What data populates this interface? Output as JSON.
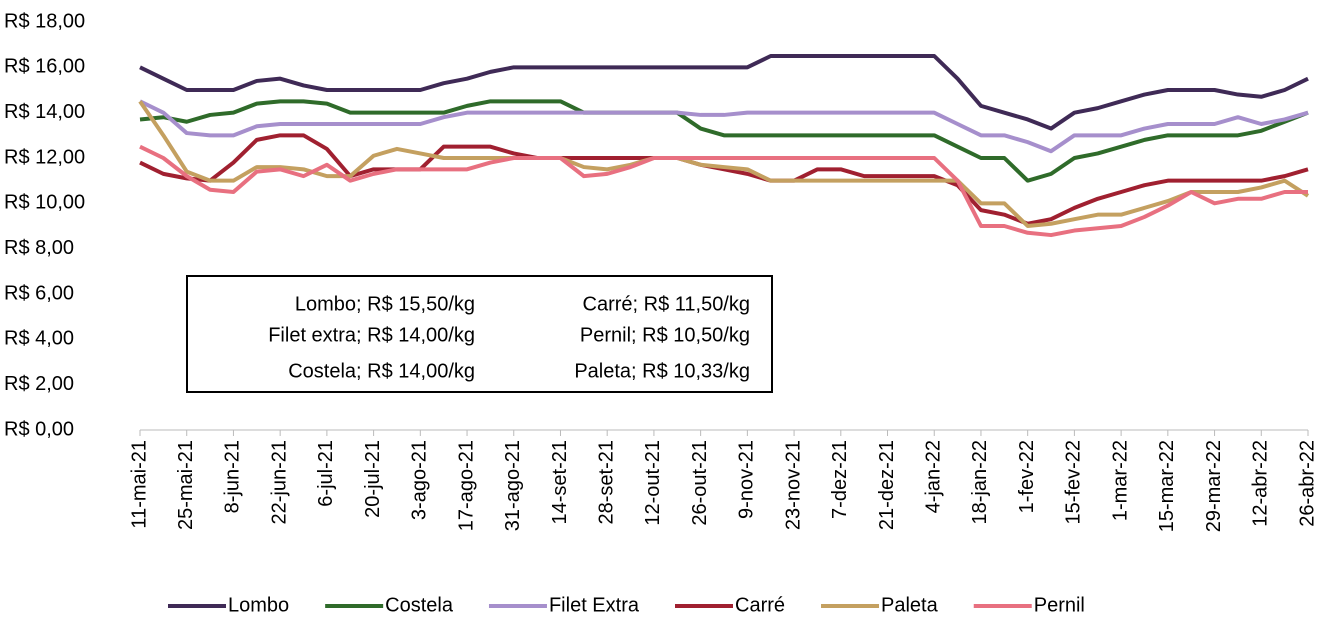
{
  "chart_data": {
    "type": "line",
    "categories": [
      "11-mai-21",
      null,
      "25-mai-21",
      null,
      "8-jun-21",
      null,
      "22-jun-21",
      null,
      "6-jul-21",
      null,
      "20-jul-21",
      null,
      "3-ago-21",
      null,
      "17-ago-21",
      null,
      "31-ago-21",
      null,
      "14-set-21",
      null,
      "28-set-21",
      null,
      "12-out-21",
      null,
      "26-out-21",
      null,
      "9-nov-21",
      null,
      "23-nov-21",
      null,
      "7-dez-21",
      null,
      "21-dez-21",
      null,
      "4-jan-22",
      null,
      "18-jan-22",
      null,
      "1-fev-22",
      null,
      "15-fev-22",
      null,
      "1-mar-22",
      null,
      "15-mar-22",
      null,
      "29-mar-22",
      null,
      "12-abr-22",
      null,
      "26-abr-22"
    ],
    "series": [
      {
        "name": "Lombo",
        "color": "#3f2a56",
        "values": [
          16,
          15.5,
          15,
          15,
          15,
          15.4,
          15.5,
          15.2,
          15,
          15,
          15,
          15,
          15,
          15.3,
          15.5,
          15.8,
          16,
          16,
          16,
          16,
          16,
          16,
          16,
          16,
          16,
          16,
          16,
          16.5,
          16.5,
          16.5,
          16.5,
          16.5,
          16.5,
          16.5,
          16.5,
          15.5,
          14.3,
          14,
          13.7,
          13.3,
          14,
          14.2,
          14.5,
          14.8,
          15,
          15,
          15,
          14.8,
          14.7,
          15,
          15.5
        ]
      },
      {
        "name": "Costela",
        "color": "#2f6b2a",
        "values": [
          13.7,
          13.8,
          13.6,
          13.9,
          14,
          14.4,
          14.5,
          14.5,
          14.4,
          14,
          14,
          14,
          14,
          14,
          14.3,
          14.5,
          14.5,
          14.5,
          14.5,
          14,
          14,
          14,
          14,
          14,
          13.3,
          13,
          13,
          13,
          13,
          13,
          13,
          13,
          13,
          13,
          13,
          12.5,
          12,
          12,
          11,
          11.3,
          12,
          12.2,
          12.5,
          12.8,
          13,
          13,
          13,
          13,
          13.2,
          13.6,
          14
        ]
      },
      {
        "name": "Filet Extra",
        "color": "#a68fcc",
        "values": [
          14.5,
          14,
          13.1,
          13,
          13,
          13.4,
          13.5,
          13.5,
          13.5,
          13.5,
          13.5,
          13.5,
          13.5,
          13.8,
          14,
          14,
          14,
          14,
          14,
          14,
          14,
          14,
          14,
          14,
          13.9,
          13.9,
          14,
          14,
          14,
          14,
          14,
          14,
          14,
          14,
          14,
          13.5,
          13,
          13,
          12.7,
          12.3,
          13,
          13,
          13,
          13.3,
          13.5,
          13.5,
          13.5,
          13.8,
          13.5,
          13.7,
          14
        ]
      },
      {
        "name": "Carré",
        "color": "#a02030",
        "values": [
          11.8,
          11.3,
          11.1,
          11,
          11.8,
          12.8,
          13,
          13,
          12.4,
          11.2,
          11.5,
          11.5,
          11.5,
          12.5,
          12.5,
          12.5,
          12.2,
          12,
          12,
          12,
          12,
          12,
          12,
          12,
          11.7,
          11.5,
          11.3,
          11,
          11,
          11.5,
          11.5,
          11.2,
          11.2,
          11.2,
          11.2,
          10.8,
          9.7,
          9.5,
          9.1,
          9.3,
          9.8,
          10.2,
          10.5,
          10.8,
          11,
          11,
          11,
          11,
          11,
          11.2,
          11.5
        ]
      },
      {
        "name": "Paleta",
        "color": "#c4a060",
        "values": [
          14.5,
          13,
          11.4,
          11,
          11,
          11.6,
          11.6,
          11.5,
          11.2,
          11.2,
          12.1,
          12.4,
          12.2,
          12,
          12,
          12,
          12,
          12,
          12,
          11.6,
          11.5,
          11.7,
          12,
          12,
          11.7,
          11.6,
          11.5,
          11,
          11,
          11,
          11,
          11,
          11,
          11,
          11,
          11,
          10,
          10,
          9,
          9.1,
          9.3,
          9.5,
          9.5,
          9.8,
          10.1,
          10.5,
          10.5,
          10.5,
          10.7,
          11,
          10.33
        ]
      },
      {
        "name": "Pernil",
        "color": "#e87080",
        "values": [
          12.5,
          12,
          11.2,
          10.6,
          10.5,
          11.4,
          11.5,
          11.2,
          11.7,
          11,
          11.3,
          11.5,
          11.5,
          11.5,
          11.5,
          11.8,
          12,
          12,
          12,
          11.2,
          11.3,
          11.6,
          12,
          12,
          12,
          12,
          12,
          12,
          12,
          12,
          12,
          12,
          12,
          12,
          12,
          11,
          9,
          9,
          8.7,
          8.6,
          8.8,
          8.9,
          9,
          9.4,
          9.9,
          10.5,
          10,
          10.2,
          10.2,
          10.5,
          10.5
        ]
      }
    ],
    "ylim": [
      0,
      18
    ],
    "yticks": [
      {
        "value": 0,
        "label": "R$ 0,00"
      },
      {
        "value": 2,
        "label": "R$ 2,00"
      },
      {
        "value": 4,
        "label": "R$ 4,00"
      },
      {
        "value": 6,
        "label": "R$ 6,00"
      },
      {
        "value": 8,
        "label": "R$ 8,00"
      },
      {
        "value": 10,
        "label": "R$ 10,00"
      },
      {
        "value": 12,
        "label": "R$ 12,00"
      },
      {
        "value": 14,
        "label": "R$ 14,00"
      },
      {
        "value": 16,
        "label": "R$ 16,00"
      },
      {
        "value": 18,
        "label": "R$ 18,00"
      }
    ],
    "annotations": [
      "Lombo; R$ 15,50/kg",
      "Filet extra; R$ 14,00/kg",
      "Costela; R$ 14,00/kg",
      "Carré; R$ 11,50/kg",
      "Pernil; R$ 10,50/kg",
      "Paleta; R$ 10,33/kg"
    ],
    "legend": "bottom"
  }
}
